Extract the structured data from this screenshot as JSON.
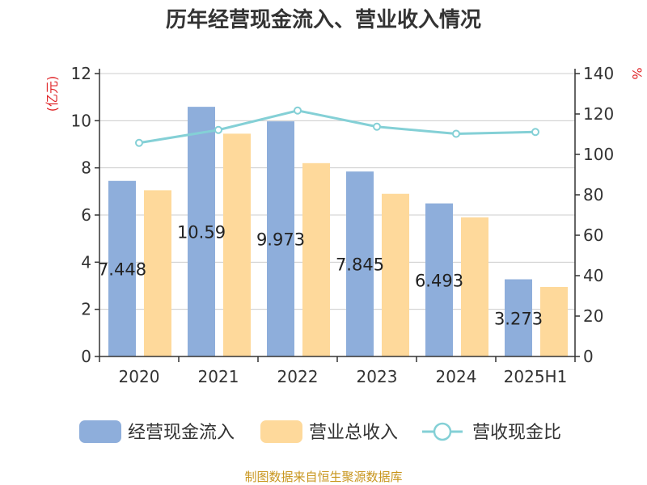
{
  "chart_data": {
    "type": "bar",
    "title": "历年经营现金流入、营业收入情况",
    "categories": [
      "2020",
      "2021",
      "2022",
      "2023",
      "2024",
      "2025H1"
    ],
    "left_axis": {
      "unit": "(亿元)",
      "ylim": [
        0,
        12
      ],
      "ticks": [
        "0",
        "2",
        "4",
        "6",
        "8",
        "10",
        "12"
      ]
    },
    "right_axis": {
      "unit": "%",
      "ylim": [
        0,
        140
      ],
      "ticks": [
        "0",
        "20",
        "40",
        "60",
        "80",
        "100",
        "120",
        "140"
      ]
    },
    "series": [
      {
        "name": "经营现金流入",
        "kind": "bar",
        "axis": "left",
        "color": "#8eaedb",
        "values": [
          7.448,
          10.59,
          9.973,
          7.845,
          6.493,
          3.273
        ],
        "labels": [
          "7.448",
          "10.59",
          "9.973",
          "7.845",
          "6.493",
          "3.273"
        ]
      },
      {
        "name": "营业总收入",
        "kind": "bar",
        "axis": "left",
        "color": "#fed99b",
        "values": [
          7.05,
          9.45,
          8.2,
          6.9,
          5.9,
          2.95
        ]
      },
      {
        "name": "营收现金比",
        "kind": "line",
        "axis": "right",
        "color": "#84d0d6",
        "values": [
          105.7,
          112.1,
          121.7,
          113.7,
          110.2,
          111.1
        ]
      }
    ],
    "grid": true,
    "legend_position": "bottom"
  },
  "source_text": "制图数据来自恒生聚源数据库"
}
